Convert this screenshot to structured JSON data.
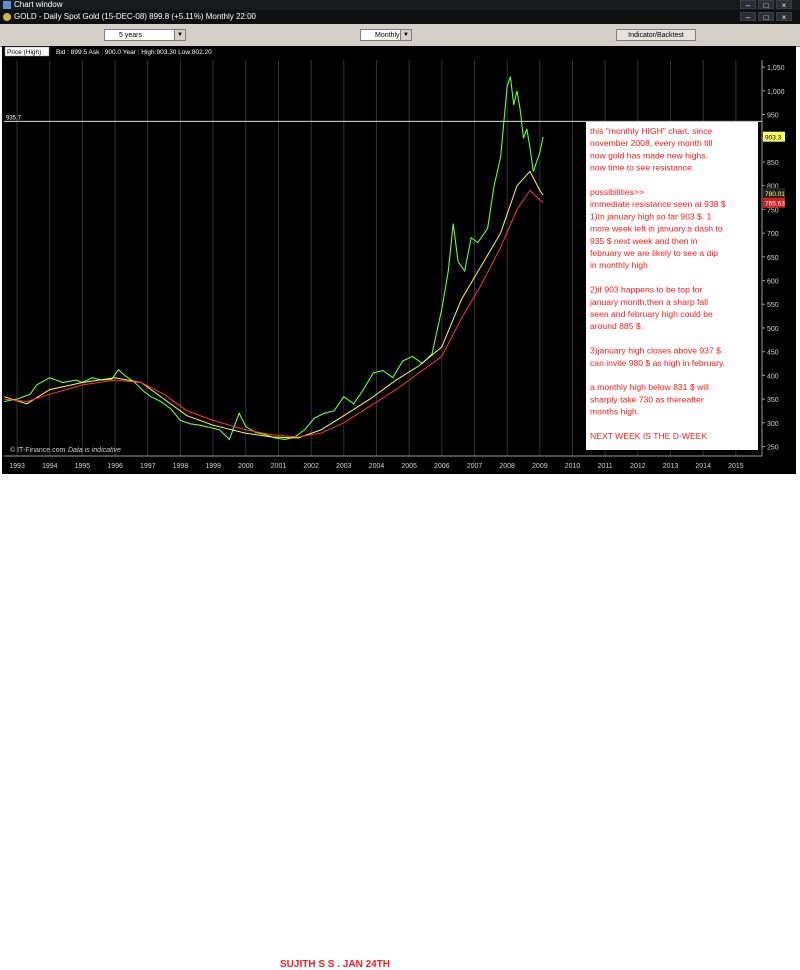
{
  "window": {
    "title": "Chart window"
  },
  "instrument_bar": {
    "text": "GOLD - Daily Spot Gold (15-DEC-08)   899.8 (+5.11%)   Monthly  22:00"
  },
  "controls": {
    "period_select": "5 years",
    "interval_select": "Monthly",
    "indicator_button": "Indicator/Backtest"
  },
  "chart_header": {
    "price_box": "Price (High)",
    "quote": "Bid : 899.5 Ask : 900.0  Year : High:903.30 Low:802.20"
  },
  "watermark": {
    "left": "IT-Finance.com",
    "right": "Data is indicative"
  },
  "annotation": {
    "lines": [
      "this \"monthly HIGH\" chart. since",
      "november 2008, every month till",
      "now gold has made new highs.",
      "now time to see resistance.",
      "",
      "possibilities>>",
      "immediate resistance seen at 938 $",
      "1)In january high so far 903 $. 1",
      "more week left in january.a dash to",
      "935 $ next week and then in",
      "february we are likely to see a dip",
      "in monthly high",
      "",
      "2)if 903 happens to be top for",
      "january month,then a sharp fall",
      "seen and february high could be",
      "around 885 $.",
      "",
      "3)january  high closes above 937 $",
      "can invite 980 $ as high in february.",
      "",
      "a monthly high below 831 $ will",
      "sharply take 730 as thereafter",
      "months high.",
      "",
      "NEXT WEEK  IS THE D-WEEK"
    ]
  },
  "caption": "SUJITH S S . JAN 24TH",
  "colors": {
    "price": "#66ff33",
    "ma_fast": "#ffff33",
    "ma_slow": "#ff3333",
    "annotation_text": "#ff1a1a",
    "resistance_line": "#ffffff",
    "grid": "#333333"
  },
  "chart_data": {
    "type": "line",
    "title": "",
    "xlabel": "",
    "ylabel": "",
    "x_ticks": [
      "1993",
      "1994",
      "1995",
      "1996",
      "1997",
      "1998",
      "1999",
      "2000",
      "2001",
      "2002",
      "2003",
      "2004",
      "2005",
      "2006",
      "2007",
      "2008",
      "2009",
      "2010",
      "2011",
      "2012",
      "2013",
      "2014",
      "2015"
    ],
    "y_ticks": [
      "250",
      "300",
      "350",
      "400",
      "450",
      "500",
      "550",
      "600",
      "650",
      "700",
      "750",
      "800",
      "850",
      "900",
      "950",
      "1,000",
      "1,050"
    ],
    "ylim": [
      230,
      1065
    ],
    "xlim": [
      1992.6,
      2015.8
    ],
    "price_labels": {
      "current": "903.3",
      "ma_fast_label": "780.01",
      "ma_slow_label": "765.63"
    },
    "horizontal_line": {
      "y": 935.7,
      "label": "935.7"
    },
    "series": [
      {
        "key": "price",
        "x": [
          1992.6,
          1993.0,
          1993.4,
          1993.6,
          1994.0,
          1994.4,
          1994.8,
          1995.0,
          1995.3,
          1995.6,
          1995.9,
          1996.1,
          1996.3,
          1996.6,
          1996.9,
          1997.1,
          1997.4,
          1997.7,
          1998.0,
          1998.3,
          1998.6,
          1998.9,
          1999.2,
          1999.5,
          1999.8,
          2000.0,
          2000.3,
          2000.6,
          2000.9,
          2001.2,
          2001.5,
          2001.8,
          2002.1,
          2002.4,
          2002.7,
          2003.0,
          2003.3,
          2003.6,
          2003.9,
          2004.2,
          2004.5,
          2004.8,
          2005.1,
          2005.4,
          2005.7,
          2006.0,
          2006.2,
          2006.35,
          2006.5,
          2006.7,
          2006.9,
          2007.1,
          2007.4,
          2007.6,
          2007.8,
          2008.0,
          2008.1,
          2008.2,
          2008.3,
          2008.4,
          2008.5,
          2008.6,
          2008.7,
          2008.8,
          2008.9,
          2009.0,
          2009.1
        ],
        "values": [
          345,
          350,
          360,
          380,
          395,
          385,
          390,
          385,
          395,
          390,
          392,
          412,
          400,
          385,
          365,
          355,
          345,
          330,
          305,
          298,
          295,
          290,
          285,
          265,
          320,
          292,
          280,
          275,
          268,
          265,
          270,
          285,
          310,
          320,
          325,
          355,
          340,
          370,
          405,
          410,
          395,
          430,
          440,
          425,
          445,
          540,
          620,
          720,
          640,
          620,
          690,
          680,
          710,
          800,
          860,
          1010,
          1030,
          970,
          1000,
          960,
          900,
          920,
          880,
          830,
          850,
          870,
          903
        ]
      },
      {
        "key": "ma_fast",
        "x": [
          1992.6,
          1993.3,
          1994.0,
          1995.0,
          1996.0,
          1996.8,
          1997.5,
          1998.2,
          1999.0,
          2000.0,
          2000.8,
          2001.6,
          2002.3,
          2003.0,
          2003.8,
          2004.6,
          2005.3,
          2006.0,
          2006.6,
          2007.2,
          2007.8,
          2008.3,
          2008.7,
          2009.0,
          2009.1
        ],
        "values": [
          355,
          340,
          370,
          385,
          395,
          385,
          350,
          315,
          295,
          278,
          270,
          268,
          285,
          315,
          350,
          390,
          420,
          460,
          560,
          630,
          700,
          800,
          830,
          790,
          780
        ]
      },
      {
        "key": "ma_slow",
        "x": [
          1992.6,
          1993.3,
          1994.0,
          1995.0,
          1996.0,
          1996.8,
          1997.5,
          1998.2,
          1999.0,
          2000.0,
          2000.8,
          2001.6,
          2002.3,
          2003.0,
          2003.8,
          2004.6,
          2005.3,
          2006.0,
          2006.6,
          2007.2,
          2007.8,
          2008.3,
          2008.7,
          2009.0,
          2009.1
        ],
        "values": [
          350,
          345,
          360,
          380,
          390,
          385,
          360,
          325,
          305,
          285,
          275,
          270,
          278,
          300,
          335,
          370,
          405,
          440,
          520,
          590,
          670,
          750,
          790,
          770,
          765
        ]
      }
    ]
  }
}
